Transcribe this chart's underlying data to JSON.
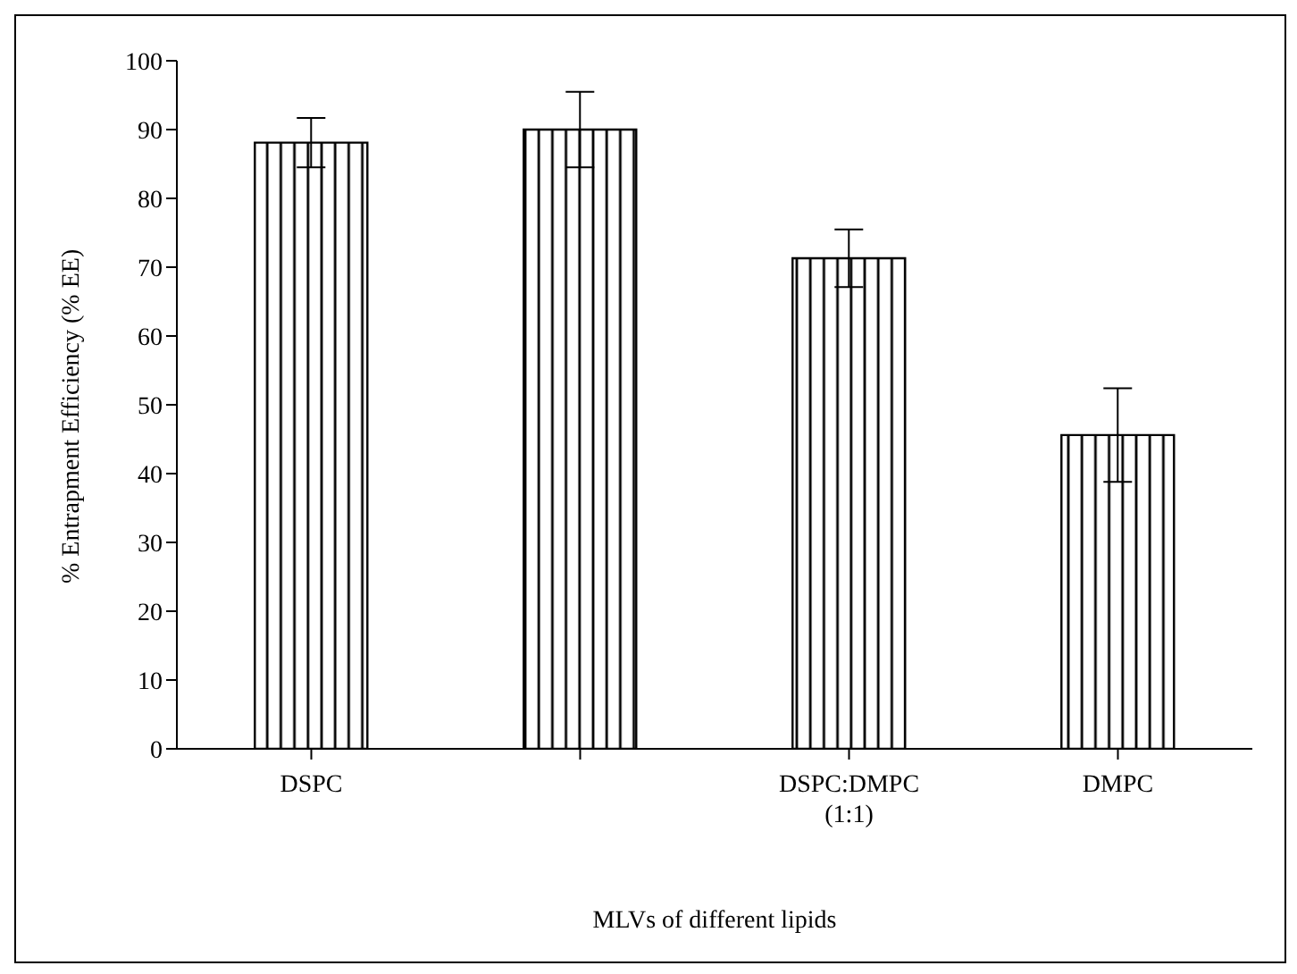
{
  "chart_data": {
    "type": "bar",
    "xlabel": "MLVs of different lipids",
    "ylabel": "% Entrapment Efficiency (% EE)",
    "categories": [
      "DSPC",
      null,
      "DSPC:DMPC (1:1)",
      "DMPC"
    ],
    "values": [
      88.1,
      90,
      71.3,
      45.6
    ],
    "errors": [
      3.6,
      5.5,
      4.2,
      6.8
    ],
    "color": "#000000",
    "ylim": [
      0,
      100
    ],
    "yticks": [
      0,
      10,
      20,
      30,
      40,
      50,
      60,
      70,
      80,
      90,
      100
    ],
    "grid": false,
    "legend": false
  }
}
